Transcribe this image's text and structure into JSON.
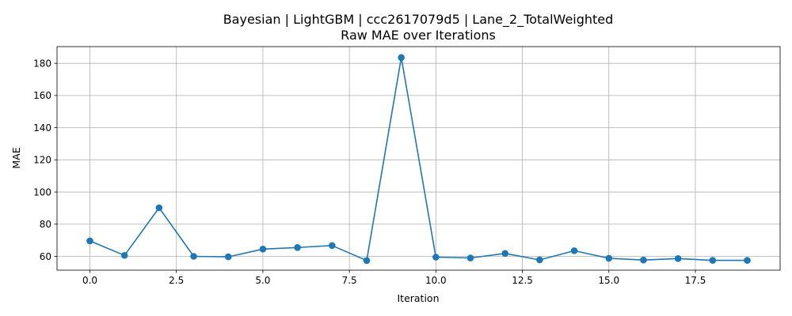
{
  "chart_data": {
    "type": "line",
    "title": "Bayesian | LightGBM | ccc2617079d5 | Lane_2_TotalWeighted",
    "subtitle": "Raw MAE over Iterations",
    "xlabel": "Iteration",
    "ylabel": "MAE",
    "xlim": [
      -0.95,
      19.95
    ],
    "ylim": [
      51.4,
      190.4
    ],
    "xticks": [
      0.0,
      2.5,
      5.0,
      7.5,
      10.0,
      12.5,
      15.0,
      17.5
    ],
    "xtick_labels": [
      "0.0",
      "2.5",
      "5.0",
      "7.5",
      "10.0",
      "12.5",
      "15.0",
      "17.5"
    ],
    "yticks": [
      60,
      80,
      100,
      120,
      140,
      160,
      180
    ],
    "ytick_labels": [
      "60",
      "80",
      "100",
      "120",
      "140",
      "160",
      "180"
    ],
    "grid": true,
    "series": [
      {
        "color": "#1f77b4",
        "marker": "circle",
        "x": [
          0,
          1,
          2,
          3,
          4,
          5,
          6,
          7,
          8,
          9,
          10,
          11,
          12,
          13,
          14,
          15,
          16,
          17,
          18,
          19
        ],
        "values": [
          69.6,
          60.6,
          90.2,
          60.0,
          59.7,
          64.5,
          65.5,
          66.7,
          57.4,
          183.6,
          59.5,
          59.0,
          61.8,
          57.8,
          63.5,
          58.8,
          57.7,
          58.6,
          57.5,
          57.5
        ]
      }
    ]
  }
}
